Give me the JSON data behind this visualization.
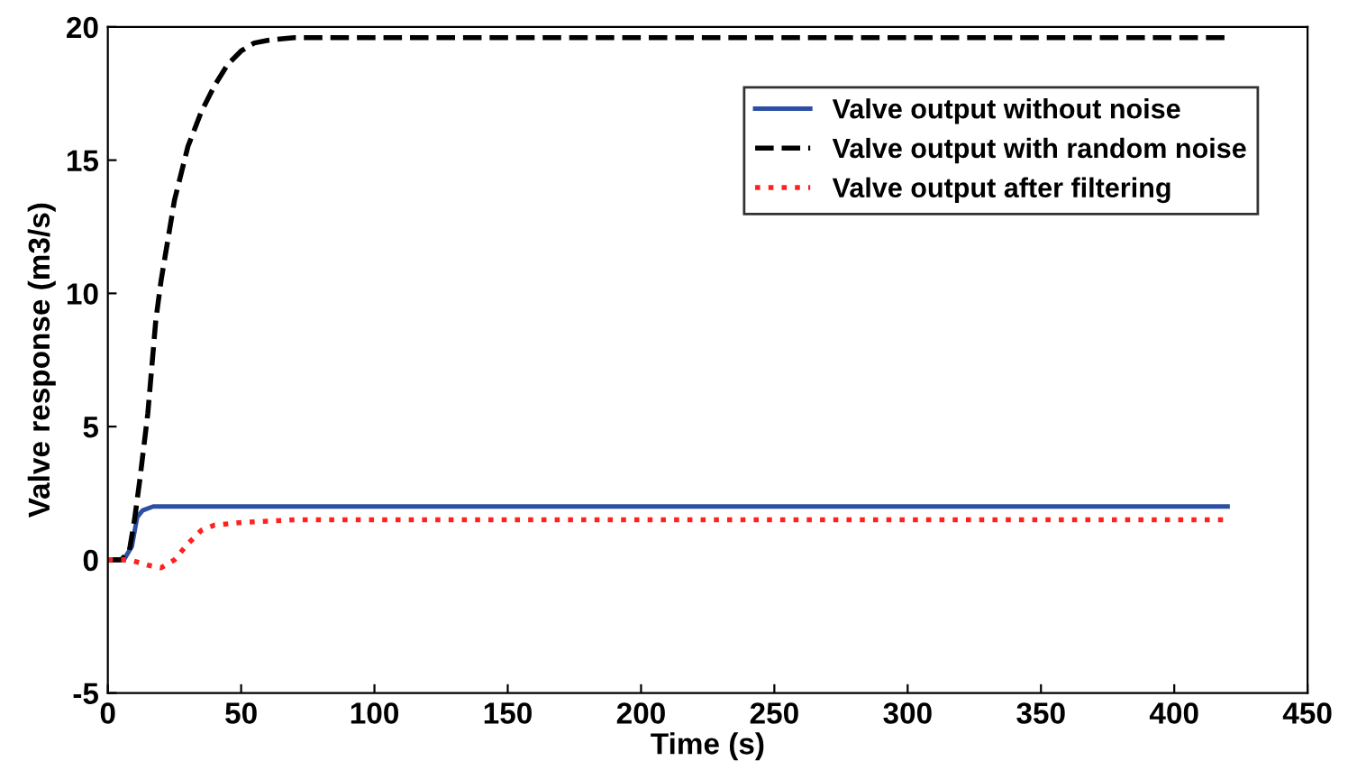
{
  "chart_data": {
    "type": "line",
    "xlabel": "Time (s)",
    "ylabel": "Valve response (m3/s)",
    "xlim": [
      0,
      450
    ],
    "ylim": [
      -5,
      20
    ],
    "xticks": [
      0,
      50,
      100,
      150,
      200,
      250,
      300,
      350,
      400,
      450
    ],
    "yticks": [
      -5,
      0,
      5,
      10,
      15,
      20
    ],
    "grid": false,
    "legend": "top right",
    "series": [
      {
        "name": "Valve output without noise",
        "color": "#2b4fa3",
        "line_style": "solid",
        "x": [
          0,
          6,
          9,
          11,
          13,
          17,
          420
        ],
        "values": [
          0,
          0,
          0.5,
          1.6,
          1.85,
          2.0,
          2.0
        ]
      },
      {
        "name": "Valve output with random noise",
        "color": "#000000",
        "line_style": "dashed",
        "x": [
          0,
          5,
          8,
          10,
          12,
          15,
          18,
          20,
          25,
          30,
          35,
          40,
          45,
          50,
          55,
          60,
          70,
          420
        ],
        "values": [
          0,
          0,
          0.3,
          1.5,
          3,
          5.5,
          9,
          10.5,
          13.5,
          15.5,
          16.8,
          17.8,
          18.6,
          19.1,
          19.4,
          19.5,
          19.6,
          19.6
        ]
      },
      {
        "name": "Valve output after filtering",
        "color": "#ff2020",
        "line_style": "dotted",
        "x": [
          0,
          8,
          15,
          20,
          25,
          30,
          35,
          40,
          50,
          60,
          70,
          420
        ],
        "values": [
          0,
          0,
          -0.2,
          -0.3,
          0,
          0.6,
          1.1,
          1.3,
          1.4,
          1.45,
          1.5,
          1.5
        ]
      }
    ]
  }
}
